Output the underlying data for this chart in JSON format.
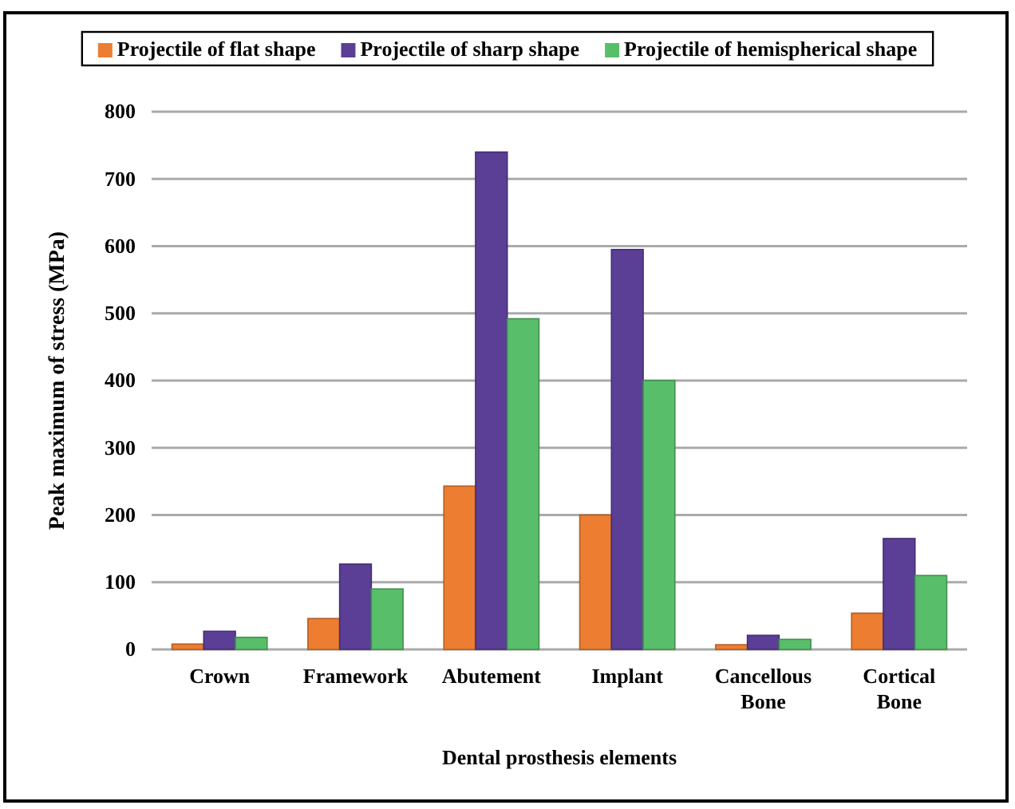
{
  "chart_data": {
    "type": "bar",
    "xlabel": "Dental prosthesis elements",
    "ylabel": "Peak maximum of stress (MPa)",
    "categories": [
      "Crown",
      "Framework",
      "Abutement",
      "Implant",
      "Cancellous Bone",
      "Cortical Bone"
    ],
    "series": [
      {
        "name": "Projectile of flat shape",
        "color": "#ed7d31",
        "values": [
          8,
          46,
          243,
          200,
          7,
          54
        ]
      },
      {
        "name": "Projectile of sharp shape",
        "color": "#5b3e96",
        "values": [
          27,
          127,
          740,
          595,
          21,
          165
        ]
      },
      {
        "name": "Projectile of hemispherical shape",
        "color": "#58be6a",
        "values": [
          18,
          90,
          492,
          400,
          15,
          110
        ]
      }
    ],
    "ylim": [
      0,
      800
    ],
    "yticks": [
      0,
      100,
      200,
      300,
      400,
      500,
      600,
      700,
      800
    ],
    "grid": "y",
    "legend": "top"
  }
}
